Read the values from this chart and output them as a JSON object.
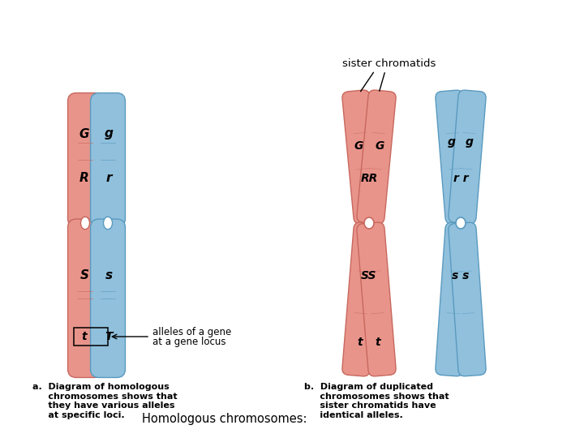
{
  "background_color": "#ffffff",
  "pink_color": "#E8948A",
  "blue_color": "#90C0DC",
  "pink_dark": "#C8685E",
  "blue_dark": "#5A9ABF",
  "text_color": "#000000",
  "title": "Homologous chromosomes:",
  "label_a": "a.  Diagram of homologous\n     chromosomes shows that\n     they have various alleles\n     at specific loci.",
  "label_b": "b.  Diagram of duplicated\n     chromosomes shows that\n     sister chromatids have\n     identical alleles.",
  "sister_label": "sister chromatids",
  "allele_note_line1": "alleles of a gene",
  "allele_note_line2": "at a gene locus"
}
